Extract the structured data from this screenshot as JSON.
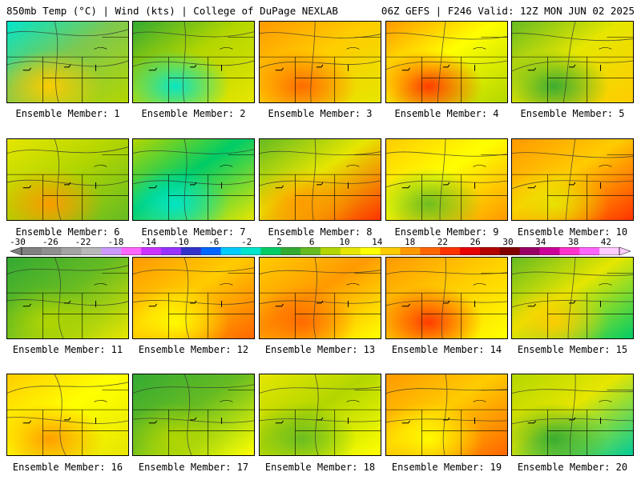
{
  "header": {
    "left": "850mb Temp (°C) | Wind (kts) | College of DuPage NEXLAB",
    "right": "06Z GEFS | F246 Valid: 12Z MON JUN 02 2025"
  },
  "colorbar": {
    "tick_labels": [
      "-30",
      "-26",
      "-22",
      "-18",
      "-14",
      "-10",
      "-6",
      "-2",
      "2",
      "6",
      "10",
      "14",
      "18",
      "22",
      "26",
      "30",
      "34",
      "38",
      "42"
    ],
    "colors": [
      "#808080",
      "#8f8f8f",
      "#a3a3a3",
      "#b8b8b8",
      "#cc99ff",
      "#ff66ff",
      "#cc33ff",
      "#9933ff",
      "#3333cc",
      "#0066ff",
      "#00ccff",
      "#00e5cc",
      "#00cc66",
      "#33aa33",
      "#66bb22",
      "#b3d600",
      "#e6e600",
      "#ffff00",
      "#ffcc00",
      "#ff9900",
      "#ff6600",
      "#ff3300",
      "#e60000",
      "#b30000",
      "#800000",
      "#990066",
      "#cc0099",
      "#ff33cc",
      "#ff66ff",
      "#ffccff"
    ]
  },
  "members": [
    {
      "label": "Ensemble Member: 1",
      "palette": [
        "#7ec850",
        "#00e5cc",
        "#ffcc00",
        "#b3d600"
      ]
    },
    {
      "label": "Ensemble Member: 2",
      "palette": [
        "#b3d600",
        "#33aa33",
        "#00e5cc",
        "#e6e600"
      ]
    },
    {
      "label": "Ensemble Member: 3",
      "palette": [
        "#ffcc00",
        "#ff9900",
        "#ff6600",
        "#e6e600"
      ]
    },
    {
      "label": "Ensemble Member: 4",
      "palette": [
        "#ffff00",
        "#ff9900",
        "#ff3300",
        "#b3d600"
      ]
    },
    {
      "label": "Ensemble Member: 5",
      "palette": [
        "#e6e600",
        "#66bb22",
        "#33aa33",
        "#ffcc00"
      ]
    },
    {
      "label": "Ensemble Member: 6",
      "palette": [
        "#b3d600",
        "#e6e600",
        "#ff9900",
        "#66bb22"
      ]
    },
    {
      "label": "Ensemble Member: 7",
      "palette": [
        "#00cc66",
        "#b3d600",
        "#00e5cc",
        "#e6e600"
      ]
    },
    {
      "label": "Ensemble Member: 8",
      "palette": [
        "#e6e600",
        "#66bb22",
        "#ff9900",
        "#ff3300"
      ]
    },
    {
      "label": "Ensemble Member: 9",
      "palette": [
        "#ffff00",
        "#ffcc00",
        "#66bb22",
        "#ff9900"
      ]
    },
    {
      "label": "Ensemble Member: 10",
      "palette": [
        "#ffcc00",
        "#ff9900",
        "#e6e600",
        "#ff3300"
      ]
    },
    {
      "label": "Ensemble Member: 11",
      "palette": [
        "#66bb22",
        "#33aa33",
        "#b3d600",
        "#e6e600"
      ]
    },
    {
      "label": "Ensemble Member: 12",
      "palette": [
        "#ffcc00",
        "#ff9900",
        "#ffff00",
        "#ff6600"
      ]
    },
    {
      "label": "Ensemble Member: 13",
      "palette": [
        "#ff9900",
        "#ffcc00",
        "#ff6600",
        "#ffff00"
      ]
    },
    {
      "label": "Ensemble Member: 14",
      "palette": [
        "#ffcc00",
        "#ff9900",
        "#ff3300",
        "#ffff00"
      ]
    },
    {
      "label": "Ensemble Member: 15",
      "palette": [
        "#e6e600",
        "#66bb22",
        "#ffcc00",
        "#00cc66"
      ]
    },
    {
      "label": "Ensemble Member: 16",
      "palette": [
        "#ffff00",
        "#ffcc00",
        "#ff9900",
        "#e6e600"
      ]
    },
    {
      "label": "Ensemble Member: 17",
      "palette": [
        "#66bb22",
        "#33aa33",
        "#b3d600",
        "#ffff00"
      ]
    },
    {
      "label": "Ensemble Member: 18",
      "palette": [
        "#b3d600",
        "#e6e600",
        "#66bb22",
        "#ffff00"
      ]
    },
    {
      "label": "Ensemble Member: 19",
      "palette": [
        "#ffcc00",
        "#ff9900",
        "#ffff00",
        "#ff6600"
      ]
    },
    {
      "label": "Ensemble Member: 20",
      "palette": [
        "#e6e600",
        "#b3d600",
        "#33aa33",
        "#00cc99"
      ]
    }
  ]
}
